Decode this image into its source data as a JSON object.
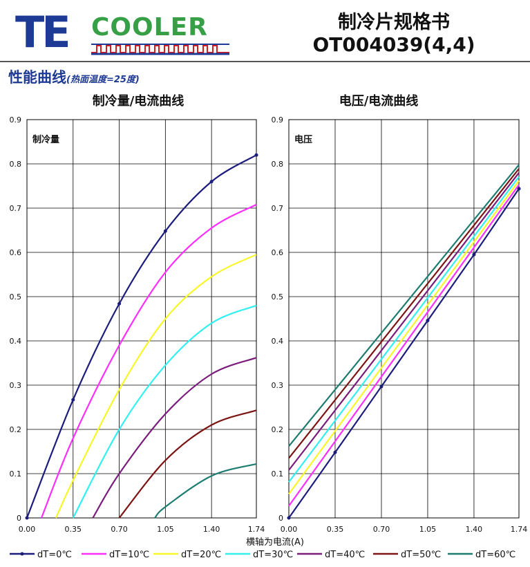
{
  "header": {
    "logo_te": "TE",
    "logo_cooler": "COOLER",
    "title": "制冷片规格书",
    "model": "OT004039(4,4)"
  },
  "section": {
    "title": "性能曲线",
    "subtitle": "(热面温度=25度)"
  },
  "xlabel": "横轴为电流(A)",
  "legend": [
    "dT=0℃",
    "dT=10℃",
    "dT=20℃",
    "dT=30℃",
    "dT=40℃",
    "dT=50℃",
    "dT=60℃"
  ],
  "colors": [
    "#1c1c7c",
    "#ff2eff",
    "#f7f72a",
    "#33f0f0",
    "#7a1c7c",
    "#7c1414",
    "#1c7c6f"
  ],
  "chart_data": [
    {
      "type": "line",
      "title": "制冷量/电流曲线",
      "inner_label": "制冷量",
      "xlabel": "横轴为电流(A)",
      "x_ticks": [
        "0.00",
        "0.35",
        "0.70",
        "1.05",
        "1.40",
        "1.74"
      ],
      "y_ticks": [
        "0",
        "0.1",
        "0.2",
        "0.3",
        "0.4",
        "0.5",
        "0.6",
        "0.7",
        "0.8",
        "0.9"
      ],
      "xlim": [
        0,
        1.74
      ],
      "ylim": [
        0,
        0.9
      ],
      "grid": true,
      "series": [
        {
          "name": "dT=0℃",
          "x": [
            0,
            0.35,
            0.7,
            1.05,
            1.4,
            1.74
          ],
          "values": [
            0,
            0.267,
            0.484,
            0.648,
            0.76,
            0.82
          ]
        },
        {
          "name": "dT=10℃",
          "x": [
            0.11,
            0.35,
            0.7,
            1.05,
            1.4,
            1.74
          ],
          "values": [
            0,
            0.18,
            0.39,
            0.555,
            0.655,
            0.708
          ]
        },
        {
          "name": "dT=20℃",
          "x": [
            0.22,
            0.35,
            0.7,
            1.05,
            1.4,
            1.74
          ],
          "values": [
            0,
            0.085,
            0.29,
            0.45,
            0.545,
            0.595
          ]
        },
        {
          "name": "dT=30℃",
          "x": [
            0.35,
            0.7,
            1.05,
            1.4,
            1.74
          ],
          "values": [
            0,
            0.2,
            0.345,
            0.44,
            0.48
          ]
        },
        {
          "name": "dT=40℃",
          "x": [
            0.5,
            0.7,
            1.05,
            1.4,
            1.74
          ],
          "values": [
            0,
            0.1,
            0.235,
            0.325,
            0.362
          ]
        },
        {
          "name": "dT=50℃",
          "x": [
            0.7,
            1.05,
            1.4,
            1.74
          ],
          "values": [
            0,
            0.13,
            0.21,
            0.243
          ]
        },
        {
          "name": "dT=60℃",
          "x": [
            0.97,
            1.05,
            1.4,
            1.74
          ],
          "values": [
            0,
            0.025,
            0.095,
            0.122
          ]
        }
      ]
    },
    {
      "type": "line",
      "title": "电压/电流曲线",
      "inner_label": "电压",
      "xlabel": "横轴为电流(A)",
      "x_ticks": [
        "0.00",
        "0.35",
        "0.70",
        "1.05",
        "1.40",
        "1.74"
      ],
      "y_ticks": [
        "0",
        "0.1",
        "0.2",
        "0.3",
        "0.4",
        "0.5",
        "0.6",
        "0.7",
        "0.8",
        "0.9"
      ],
      "xlim": [
        0,
        1.74
      ],
      "ylim": [
        0,
        0.9
      ],
      "grid": true,
      "series": [
        {
          "name": "dT=0℃",
          "x": [
            0,
            0.35,
            0.7,
            1.05,
            1.4,
            1.74
          ],
          "values": [
            0,
            0.148,
            0.297,
            0.446,
            0.595,
            0.744
          ]
        },
        {
          "name": "dT=10℃",
          "x": [
            0,
            1.74
          ],
          "values": [
            0.027,
            0.753
          ]
        },
        {
          "name": "dT=20℃",
          "x": [
            0,
            1.74
          ],
          "values": [
            0.054,
            0.762
          ]
        },
        {
          "name": "dT=30℃",
          "x": [
            0,
            1.74
          ],
          "values": [
            0.081,
            0.771
          ]
        },
        {
          "name": "dT=40℃",
          "x": [
            0,
            1.74
          ],
          "values": [
            0.108,
            0.78
          ]
        },
        {
          "name": "dT=50℃",
          "x": [
            0,
            1.74
          ],
          "values": [
            0.135,
            0.789
          ]
        },
        {
          "name": "dT=60℃",
          "x": [
            0,
            1.74
          ],
          "values": [
            0.162,
            0.798
          ]
        }
      ]
    }
  ]
}
